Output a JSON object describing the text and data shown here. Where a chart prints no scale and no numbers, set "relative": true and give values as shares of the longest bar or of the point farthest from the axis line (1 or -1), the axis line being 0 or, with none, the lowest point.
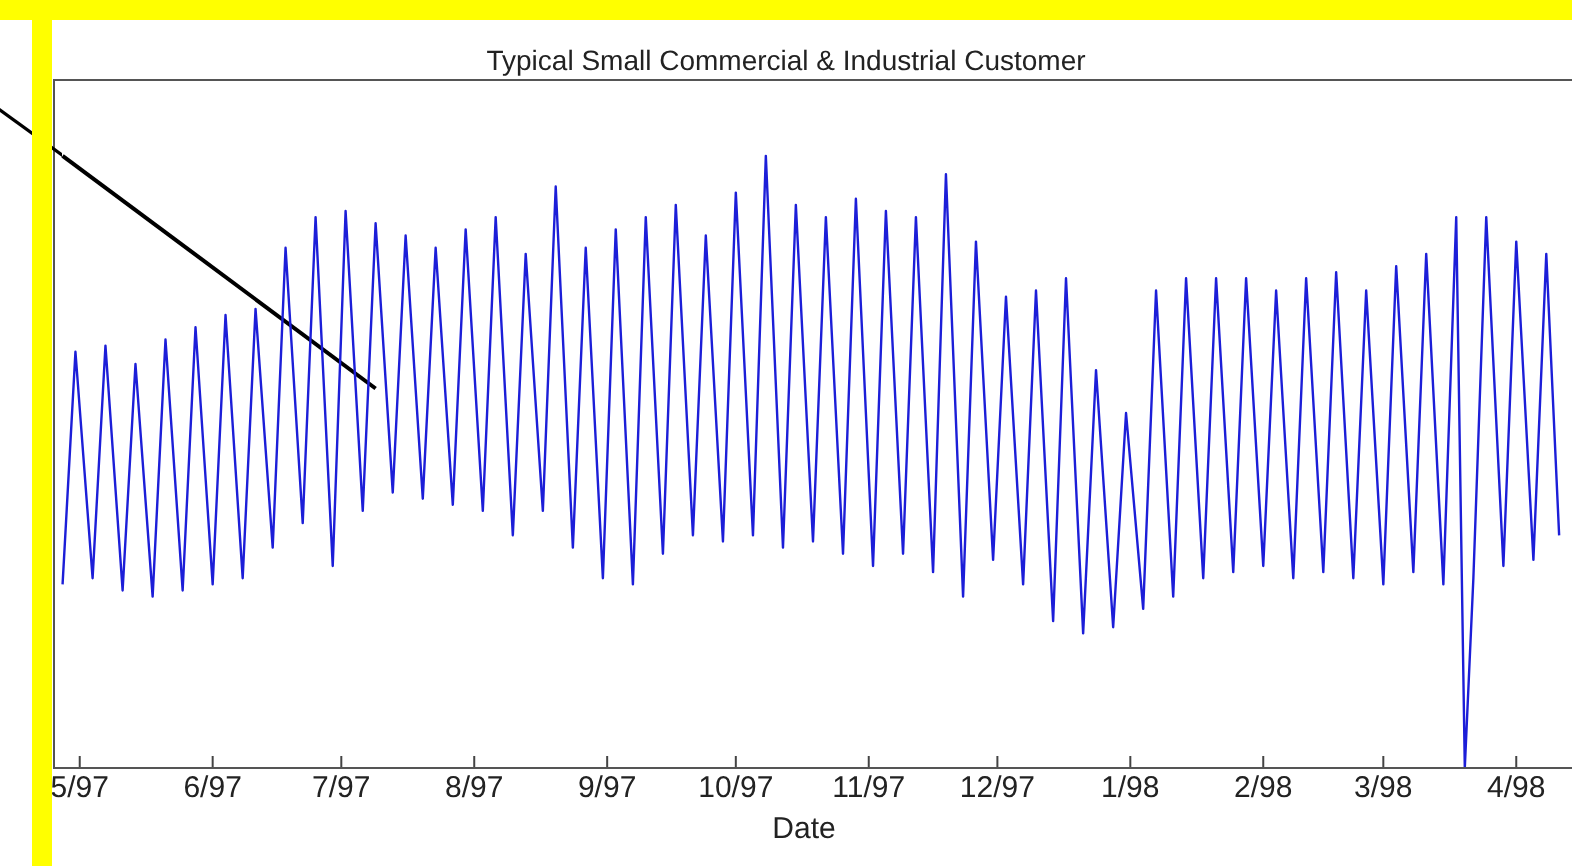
{
  "chart_data": {
    "type": "line",
    "title": "Typical Small Commercial & Industrial Customer",
    "xlabel": "Date",
    "relative": true,
    "xlim": [
      "1997-04-25",
      "1998-04-14"
    ],
    "xticks": [
      {
        "value": "1997-05-01",
        "label": "5/97"
      },
      {
        "value": "1997-06-01",
        "label": "6/97"
      },
      {
        "value": "1997-07-01",
        "label": "7/97"
      },
      {
        "value": "1997-08-01",
        "label": "8/97"
      },
      {
        "value": "1997-09-01",
        "label": "9/97"
      },
      {
        "value": "1997-10-01",
        "label": "10/97"
      },
      {
        "value": "1997-11-01",
        "label": "11/97"
      },
      {
        "value": "1997-12-01",
        "label": "12/97"
      },
      {
        "value": "1998-01-01",
        "label": "1/98"
      },
      {
        "value": "1998-02-01",
        "label": "2/98"
      },
      {
        "value": "1998-03-01",
        "label": "3/98"
      },
      {
        "value": "1998-04-01",
        "label": "4/98"
      }
    ],
    "x": [
      "1997-04-27",
      "1997-04-30",
      "1997-05-04",
      "1997-05-07",
      "1997-05-11",
      "1997-05-14",
      "1997-05-18",
      "1997-05-21",
      "1997-05-25",
      "1997-05-28",
      "1997-06-01",
      "1997-06-04",
      "1997-06-08",
      "1997-06-11",
      "1997-06-15",
      "1997-06-18",
      "1997-06-22",
      "1997-06-25",
      "1997-06-29",
      "1997-07-02",
      "1997-07-06",
      "1997-07-09",
      "1997-07-13",
      "1997-07-16",
      "1997-07-20",
      "1997-07-23",
      "1997-07-27",
      "1997-07-30",
      "1997-08-03",
      "1997-08-06",
      "1997-08-10",
      "1997-08-13",
      "1997-08-17",
      "1997-08-20",
      "1997-08-24",
      "1997-08-27",
      "1997-08-31",
      "1997-09-03",
      "1997-09-07",
      "1997-09-10",
      "1997-09-14",
      "1997-09-17",
      "1997-09-21",
      "1997-09-24",
      "1997-09-28",
      "1997-10-01",
      "1997-10-05",
      "1997-10-08",
      "1997-10-12",
      "1997-10-15",
      "1997-10-19",
      "1997-10-22",
      "1997-10-26",
      "1997-10-29",
      "1997-11-02",
      "1997-11-05",
      "1997-11-09",
      "1997-11-12",
      "1997-11-16",
      "1997-11-19",
      "1997-11-23",
      "1997-11-26",
      "1997-11-30",
      "1997-12-03",
      "1997-12-07",
      "1997-12-10",
      "1997-12-14",
      "1997-12-17",
      "1997-12-21",
      "1997-12-24",
      "1997-12-28",
      "1997-12-31",
      "1998-01-04",
      "1998-01-07",
      "1998-01-11",
      "1998-01-14",
      "1998-01-18",
      "1998-01-21",
      "1998-01-25",
      "1998-01-28",
      "1998-02-01",
      "1998-02-04",
      "1998-02-08",
      "1998-02-11",
      "1998-02-15",
      "1998-02-18",
      "1998-02-22",
      "1998-02-25",
      "1998-03-01",
      "1998-03-04",
      "1998-03-08",
      "1998-03-11",
      "1998-03-15",
      "1998-03-18",
      "1998-03-20",
      "1998-03-22",
      "1998-03-25",
      "1998-03-29",
      "1998-04-01",
      "1998-04-05",
      "1998-04-08",
      "1998-04-11"
    ],
    "series": [
      {
        "type": "line",
        "color": "#000000",
        "x": [
          "1997-04-27",
          "1997-07-09"
        ],
        "values": [
          1.0,
          0.62
        ]
      },
      {
        "color": "#1c1ed8",
        "values": [
          0.3,
          0.68,
          0.31,
          0.69,
          0.29,
          0.66,
          0.28,
          0.7,
          0.29,
          0.72,
          0.3,
          0.74,
          0.31,
          0.75,
          0.36,
          0.85,
          0.4,
          0.9,
          0.33,
          0.91,
          0.42,
          0.89,
          0.45,
          0.87,
          0.44,
          0.85,
          0.43,
          0.88,
          0.42,
          0.9,
          0.38,
          0.84,
          0.42,
          0.95,
          0.36,
          0.85,
          0.31,
          0.88,
          0.3,
          0.9,
          0.35,
          0.92,
          0.38,
          0.87,
          0.37,
          0.94,
          0.38,
          1.0,
          0.36,
          0.92,
          0.37,
          0.9,
          0.35,
          0.93,
          0.33,
          0.91,
          0.35,
          0.9,
          0.32,
          0.97,
          0.28,
          0.86,
          0.34,
          0.77,
          0.3,
          0.78,
          0.24,
          0.8,
          0.22,
          0.65,
          0.23,
          0.58,
          0.26,
          0.78,
          0.28,
          0.8,
          0.31,
          0.8,
          0.32,
          0.8,
          0.33,
          0.78,
          0.31,
          0.8,
          0.32,
          0.81,
          0.31,
          0.78,
          0.3,
          0.82,
          0.32,
          0.84,
          0.3,
          0.9,
          0,
          0.31,
          0.9,
          0.33,
          0.86,
          0.34,
          0.84,
          0.38
        ]
      }
    ]
  }
}
